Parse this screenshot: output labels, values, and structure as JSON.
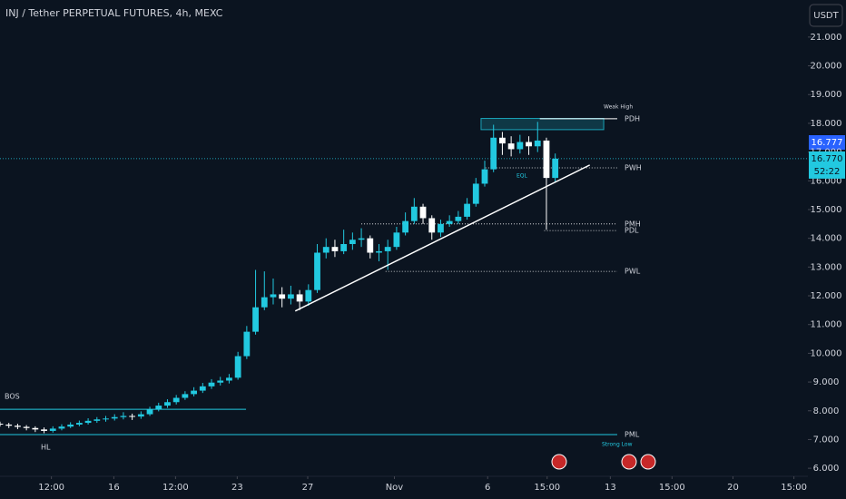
{
  "chart_data": {
    "type": "candlestick",
    "title": "INJ / Tether PERPETUAL FUTURES, 4h, MEXC",
    "currency": "USDT",
    "up_color": "#22c9e0",
    "down_color": "#ffffff",
    "x": [
      0,
      12,
      24,
      36,
      48,
      60,
      72,
      84,
      96,
      108,
      120,
      132,
      144,
      156,
      168,
      180,
      192,
      204,
      216,
      228,
      240,
      252,
      264,
      276,
      288,
      300,
      312,
      324,
      336,
      348,
      360,
      372,
      384,
      396,
      408,
      420,
      432,
      444,
      456,
      468,
      480,
      492,
      504,
      516,
      528,
      540,
      552,
      564,
      576,
      588,
      600,
      612,
      624,
      636,
      648,
      660,
      672,
      684,
      696,
      708,
      720,
      732,
      744,
      756
    ],
    "open": [
      7.55,
      7.52,
      7.48,
      7.44,
      7.4,
      7.35,
      7.3,
      7.38,
      7.45,
      7.52,
      7.58,
      7.65,
      7.7,
      7.73,
      7.78,
      7.82,
      7.8,
      7.88,
      8.05,
      8.18,
      8.3,
      8.45,
      8.58,
      8.7,
      8.85,
      8.98,
      9.05,
      9.15,
      9.9,
      10.75,
      11.6,
      11.95,
      12.05,
      11.9,
      12.05,
      11.8,
      12.2,
      13.5,
      13.7,
      13.55,
      13.8,
      13.95,
      14.0,
      13.5,
      13.55,
      13.7,
      14.2,
      14.6,
      15.1,
      14.7,
      14.2,
      14.5,
      14.6,
      14.75,
      15.2,
      15.9,
      16.4,
      17.5,
      17.3,
      17.1,
      17.35,
      17.2,
      17.4,
      16.1
    ],
    "high": [
      7.62,
      7.58,
      7.55,
      7.5,
      7.46,
      7.42,
      7.46,
      7.53,
      7.6,
      7.66,
      7.74,
      7.78,
      7.82,
      7.88,
      7.95,
      7.9,
      7.98,
      8.14,
      8.28,
      8.4,
      8.55,
      8.68,
      8.82,
      8.97,
      9.1,
      9.18,
      9.28,
      10.05,
      10.95,
      12.9,
      12.85,
      12.6,
      12.3,
      12.35,
      12.2,
      12.4,
      13.8,
      14.0,
      13.95,
      14.3,
      14.2,
      14.35,
      14.1,
      13.8,
      13.95,
      14.4,
      14.9,
      15.4,
      15.2,
      14.8,
      14.65,
      14.8,
      14.95,
      15.4,
      16.1,
      16.7,
      17.95,
      17.7,
      17.55,
      17.6,
      17.55,
      18.05,
      17.5,
      16.95
    ],
    "low": [
      7.45,
      7.4,
      7.36,
      7.32,
      7.26,
      7.22,
      7.24,
      7.32,
      7.4,
      7.46,
      7.52,
      7.58,
      7.62,
      7.66,
      7.7,
      7.68,
      7.72,
      7.82,
      7.98,
      8.1,
      8.22,
      8.38,
      8.5,
      8.62,
      8.76,
      8.88,
      8.95,
      9.08,
      9.8,
      10.65,
      11.5,
      11.7,
      11.6,
      11.7,
      11.5,
      11.65,
      12.1,
      13.3,
      13.35,
      13.45,
      13.6,
      13.7,
      13.3,
      13.2,
      12.9,
      13.6,
      14.1,
      14.5,
      14.5,
      13.95,
      14.05,
      14.4,
      14.5,
      14.65,
      15.1,
      15.8,
      16.3,
      16.9,
      16.85,
      16.95,
      16.9,
      17.0,
      14.3,
      15.95
    ],
    "close": [
      7.52,
      7.48,
      7.44,
      7.4,
      7.35,
      7.3,
      7.38,
      7.45,
      7.52,
      7.58,
      7.65,
      7.7,
      7.73,
      7.78,
      7.82,
      7.8,
      7.88,
      8.05,
      8.18,
      8.3,
      8.45,
      8.58,
      8.7,
      8.85,
      8.98,
      9.05,
      9.15,
      9.9,
      10.75,
      11.6,
      11.95,
      12.05,
      11.9,
      12.05,
      11.8,
      12.2,
      13.5,
      13.7,
      13.55,
      13.8,
      13.95,
      14.0,
      13.5,
      13.55,
      13.7,
      14.2,
      14.6,
      15.1,
      14.7,
      14.2,
      14.5,
      14.6,
      14.75,
      15.2,
      15.9,
      16.4,
      17.5,
      17.3,
      17.1,
      17.35,
      17.2,
      17.4,
      16.1,
      16.77
    ],
    "xlim": [
      0,
      1100
    ],
    "ylim": [
      5.72,
      22.29
    ],
    "xticks": [
      {
        "value": 70,
        "label": "12:00"
      },
      {
        "value": 155,
        "label": "16"
      },
      {
        "value": 239,
        "label": "12:00"
      },
      {
        "value": 323,
        "label": "23"
      },
      {
        "value": 419,
        "label": "27"
      },
      {
        "value": 537,
        "label": "Nov"
      },
      {
        "value": 664,
        "label": "6"
      },
      {
        "value": 745,
        "label": "15:00"
      },
      {
        "value": 831,
        "label": "13"
      },
      {
        "value": 915,
        "label": "15:00"
      },
      {
        "value": 998,
        "label": "20"
      },
      {
        "value": 1081,
        "label": "15:00"
      }
    ],
    "yticks": [
      {
        "value": 6,
        "label": "6.000"
      },
      {
        "value": 7,
        "label": "7.000"
      },
      {
        "value": 8,
        "label": "8.000"
      },
      {
        "value": 9,
        "label": "9.000"
      },
      {
        "value": 10,
        "label": "10.000"
      },
      {
        "value": 11,
        "label": "11.000"
      },
      {
        "value": 12,
        "label": "12.000"
      },
      {
        "value": 13,
        "label": "13.000"
      },
      {
        "value": 14,
        "label": "14.000"
      },
      {
        "value": 15,
        "label": "15.000"
      },
      {
        "value": 16,
        "label": "16.000"
      },
      {
        "value": 17,
        "label": "17.000"
      },
      {
        "value": 18,
        "label": "18.000"
      },
      {
        "value": 19,
        "label": "19.000"
      },
      {
        "value": 20,
        "label": "20.000"
      },
      {
        "value": 21,
        "label": "21.000"
      }
    ],
    "current_price": {
      "value": 16.77,
      "label": "16.770"
    },
    "countdown": "52:22",
    "price_badge": "16.777",
    "trendline": {
      "x": [
        402,
        803
      ],
      "y": [
        11.47,
        16.55
      ],
      "color": "#ffffff"
    },
    "supply_zone": {
      "x": [
        655,
        822
      ],
      "y": [
        17.78,
        18.17
      ],
      "color": "#1aa3b8"
    },
    "levels": [
      {
        "label": "PDH",
        "value": 18.16,
        "from": 735,
        "style": "solid",
        "color": "#ffffff"
      },
      {
        "label": "PWH",
        "value": 16.45,
        "from": 661,
        "style": "dotted",
        "color": "#ffffff"
      },
      {
        "label": "PMH",
        "value": 14.5,
        "from": 492,
        "style": "dotted",
        "color": "#ffffff"
      },
      {
        "label": "PDL",
        "value": 14.27,
        "from": 741,
        "style": "dotted",
        "color": "#ffffff"
      },
      {
        "label": "PWL",
        "value": 12.85,
        "from": 525,
        "style": "dotted",
        "color": "#ffffff"
      },
      {
        "label": "PML",
        "value": 7.17,
        "from": 0,
        "style": "solid",
        "color": "#22c9e0"
      }
    ],
    "bos": {
      "label": "BOS",
      "value": 8.05,
      "to": 335,
      "color": "#22c9e0"
    },
    "notes": {
      "hl": "HL",
      "eql": "EQL",
      "weak_high": "Weak High",
      "strong_low": "Strong Low"
    }
  }
}
